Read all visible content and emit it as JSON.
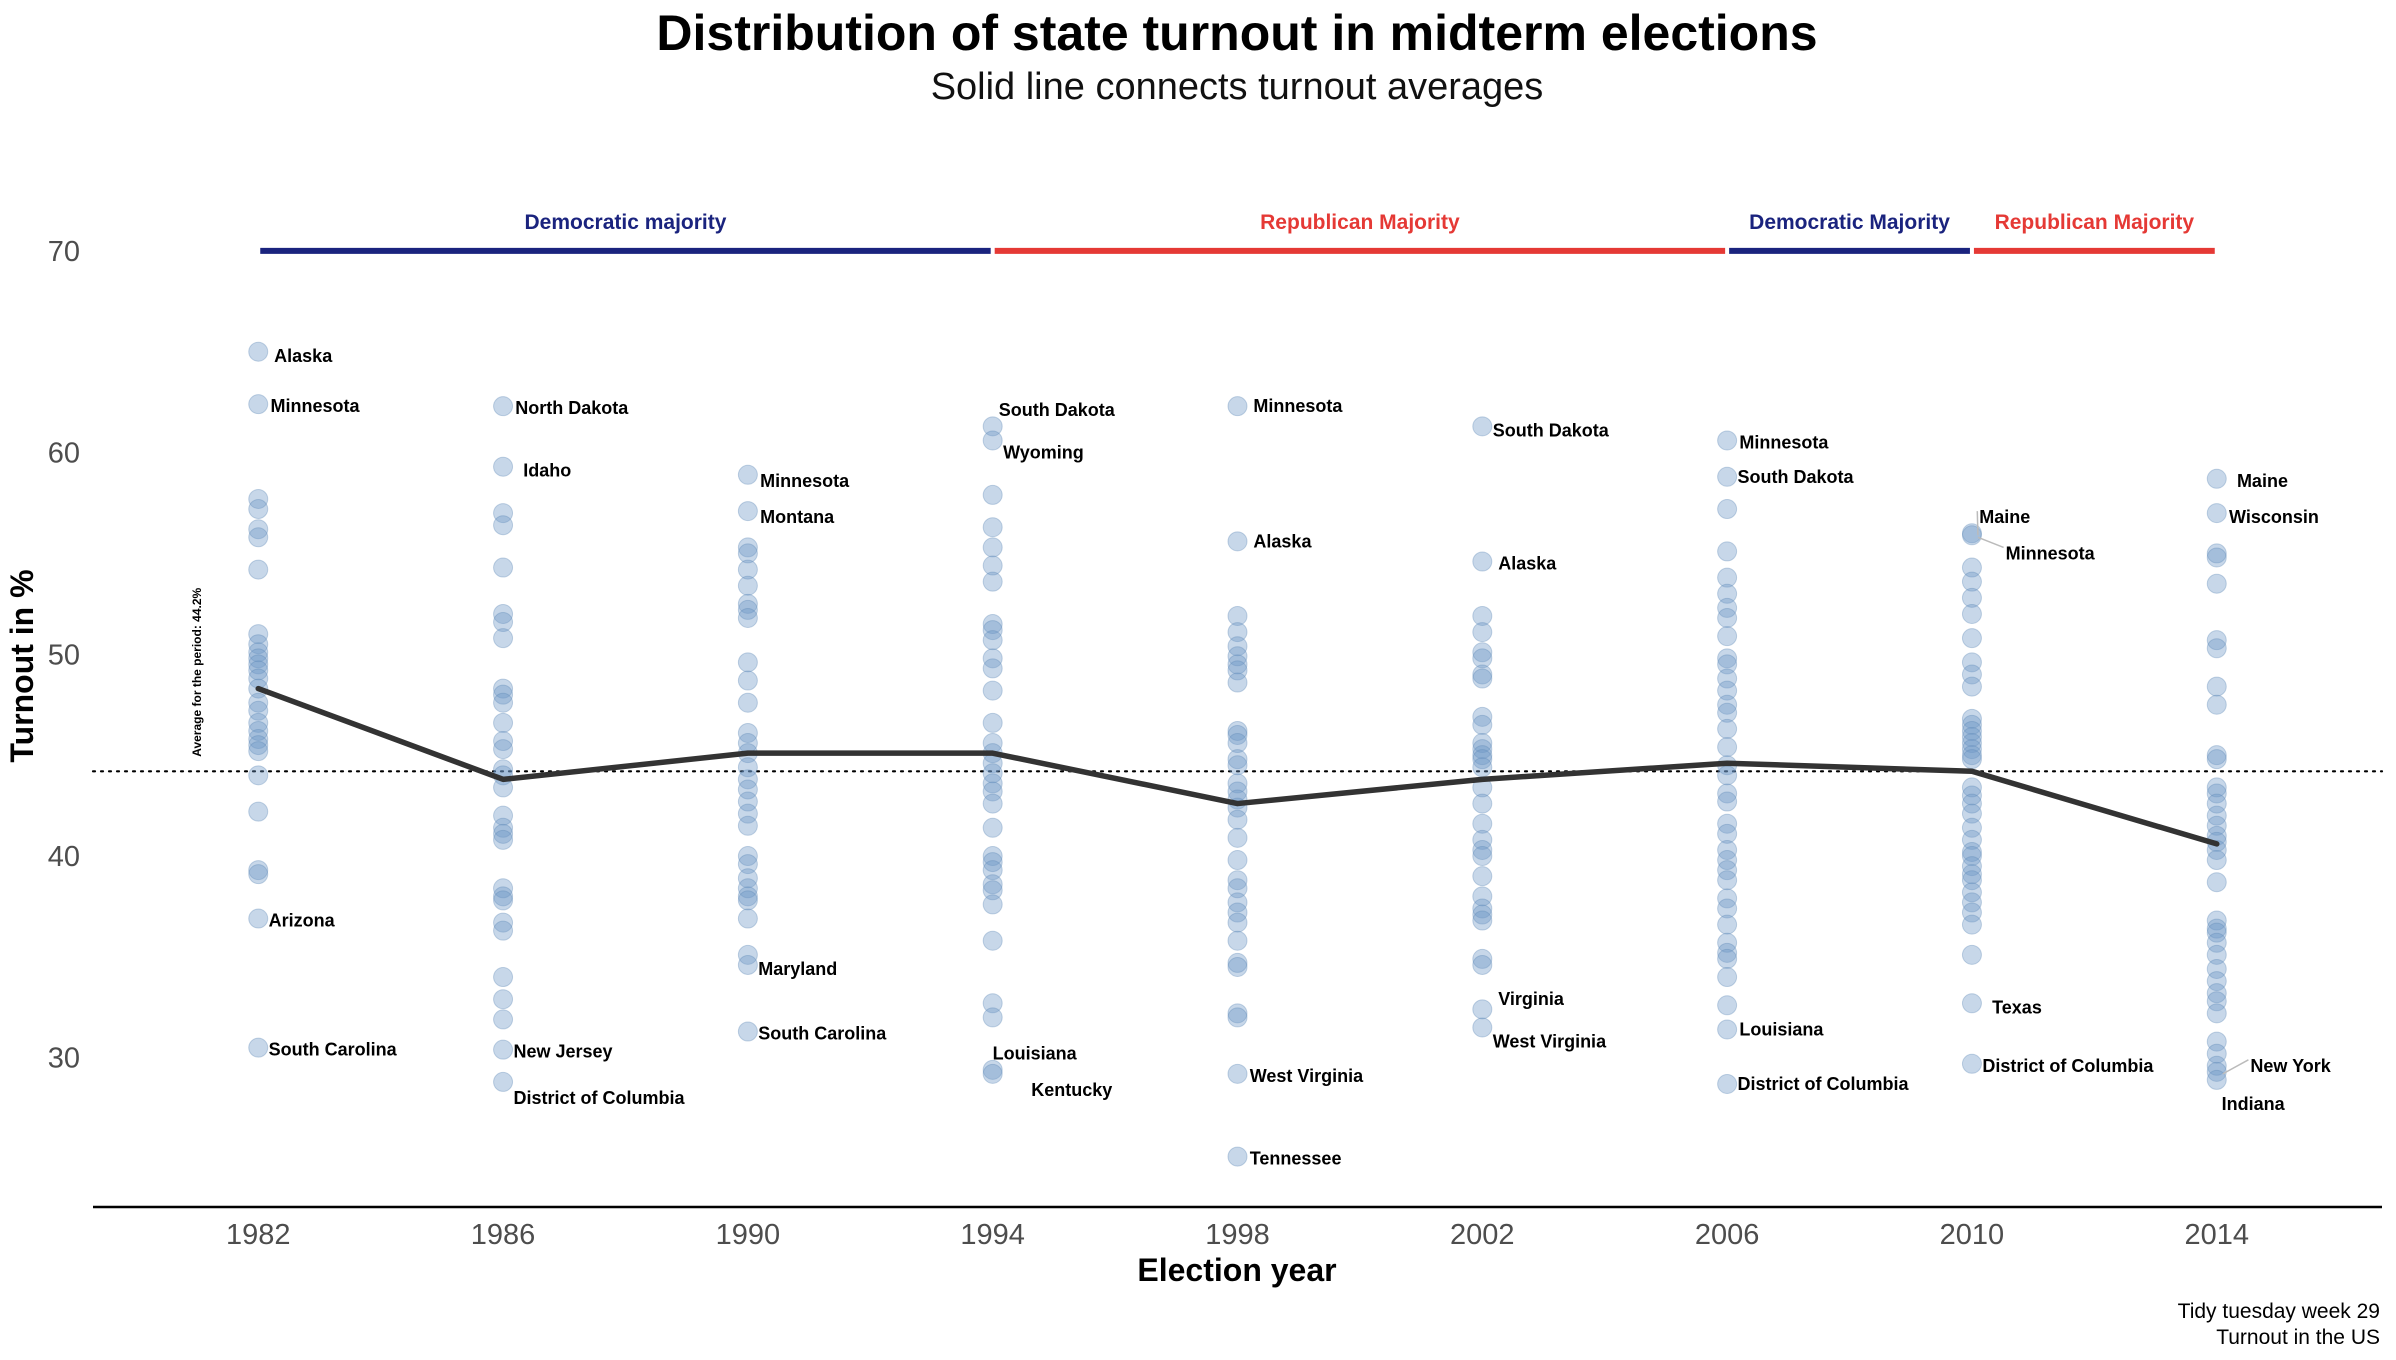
{
  "chart_data": {
    "type": "scatter",
    "title": "Distribution of state turnout in midterm elections",
    "subtitle": "Solid line connects turnout averages",
    "xlabel": "Election year",
    "ylabel": "Turnout in %",
    "x_ticks": [
      1982,
      1986,
      1990,
      1994,
      1998,
      2002,
      2006,
      2010,
      2014
    ],
    "y_ticks": [
      30,
      40,
      50,
      60,
      70
    ],
    "xlim": [
      1979.3,
      2016.7
    ],
    "ylim": [
      22.6,
      75.0
    ],
    "overall_average": {
      "value": 44.2,
      "label": "Average for the period: 44.2%"
    },
    "average_line": {
      "x": [
        1982,
        1986,
        1990,
        1994,
        1998,
        2002,
        2006,
        2010,
        2014
      ],
      "y": [
        48.3,
        43.8,
        45.1,
        45.1,
        42.6,
        43.8,
        44.6,
        44.2,
        40.6
      ]
    },
    "periods": [
      {
        "label": "Democratic majority",
        "start": 1982,
        "end": 1994,
        "color": "#1a237e"
      },
      {
        "label": "Republican Majority",
        "start": 1994,
        "end": 2006,
        "color": "#e53935"
      },
      {
        "label": "Democratic Majority",
        "start": 2006,
        "end": 2010,
        "color": "#1a237e"
      },
      {
        "label": "Republican Majority",
        "start": 2010,
        "end": 2014,
        "color": "#e53935"
      }
    ],
    "points": {
      "1982": [
        65.0,
        62.4,
        57.7,
        57.2,
        56.2,
        55.8,
        54.2,
        51.0,
        50.5,
        50.1,
        49.8,
        49.5,
        49.2,
        48.8,
        48.3,
        47.6,
        47.2,
        46.6,
        46.2,
        45.8,
        45.5,
        45.2,
        44.0,
        42.2,
        39.3,
        39.1,
        36.9,
        30.5
      ],
      "1986": [
        62.3,
        59.3,
        57.0,
        56.4,
        54.3,
        52.0,
        51.6,
        50.8,
        48.3,
        48.0,
        47.6,
        46.6,
        45.7,
        45.3,
        44.3,
        44.0,
        43.4,
        42.0,
        41.4,
        41.1,
        40.8,
        38.4,
        38.0,
        37.8,
        36.7,
        36.3,
        34.0,
        32.9,
        31.9,
        30.4,
        28.8
      ],
      "1990": [
        58.9,
        57.1,
        55.3,
        55.0,
        54.2,
        53.4,
        52.5,
        52.2,
        51.8,
        49.6,
        48.7,
        47.6,
        46.1,
        45.6,
        45.1,
        44.4,
        43.8,
        43.3,
        42.7,
        42.1,
        41.5,
        40.0,
        39.6,
        38.9,
        38.4,
        38.0,
        37.8,
        36.9,
        35.1,
        34.6,
        31.3
      ],
      "1994": [
        61.3,
        60.6,
        57.9,
        56.3,
        55.3,
        54.4,
        53.6,
        51.5,
        51.2,
        50.7,
        49.8,
        49.3,
        48.2,
        46.6,
        45.6,
        45.1,
        44.6,
        44.1,
        43.6,
        43.2,
        42.6,
        41.4,
        40.0,
        39.7,
        39.3,
        38.6,
        38.3,
        37.6,
        35.8,
        32.7,
        32.0,
        29.4,
        29.2
      ],
      "1998": [
        62.3,
        55.6,
        51.9,
        51.1,
        50.4,
        49.9,
        49.5,
        49.2,
        48.6,
        46.2,
        46.0,
        45.6,
        44.8,
        44.5,
        43.6,
        43.2,
        42.8,
        42.4,
        41.8,
        40.9,
        39.8,
        38.8,
        38.4,
        37.7,
        37.2,
        36.7,
        35.8,
        34.7,
        34.5,
        32.2,
        32.0,
        29.2,
        25.1
      ],
      "2002": [
        61.3,
        54.6,
        51.9,
        51.1,
        50.1,
        49.8,
        49.0,
        48.8,
        46.9,
        46.5,
        45.6,
        45.3,
        45.0,
        44.8,
        44.4,
        43.4,
        42.6,
        41.6,
        40.8,
        40.3,
        40.0,
        39.0,
        38.0,
        37.4,
        37.1,
        36.8,
        34.9,
        34.6,
        32.4,
        31.5
      ],
      "2006": [
        60.6,
        58.8,
        57.2,
        55.1,
        53.8,
        53.0,
        52.3,
        51.8,
        50.9,
        49.8,
        49.5,
        48.8,
        48.2,
        47.5,
        47.1,
        46.3,
        45.4,
        44.5,
        44.0,
        43.1,
        42.7,
        41.6,
        41.1,
        40.3,
        39.8,
        39.3,
        38.8,
        37.9,
        37.4,
        36.6,
        35.7,
        35.2,
        34.9,
        34.0,
        32.6,
        31.4,
        28.7
      ],
      "2010": [
        56.0,
        55.9,
        54.3,
        53.6,
        52.8,
        52.0,
        50.8,
        49.6,
        49.0,
        48.4,
        46.8,
        46.5,
        46.2,
        45.9,
        45.6,
        45.3,
        45.0,
        44.8,
        43.4,
        43.0,
        42.6,
        42.1,
        41.4,
        40.8,
        40.2,
        40.0,
        39.5,
        39.1,
        38.8,
        38.2,
        37.7,
        37.2,
        36.6,
        35.1,
        32.7,
        29.7
      ],
      "2014": [
        58.7,
        57.0,
        55.0,
        54.8,
        53.5,
        50.7,
        50.3,
        48.4,
        47.5,
        45.0,
        44.8,
        43.4,
        43.1,
        42.6,
        42.0,
        41.5,
        41.0,
        40.7,
        40.3,
        39.8,
        38.7,
        36.8,
        36.4,
        36.2,
        35.7,
        35.1,
        34.4,
        33.8,
        33.2,
        32.8,
        32.2,
        30.8,
        30.2,
        29.6,
        29.3,
        28.9
      ]
    },
    "labels": [
      {
        "text": "Alaska",
        "x": 1982,
        "y": 65.0,
        "lx": 1982.26,
        "ly": 64.8
      },
      {
        "text": "Minnesota",
        "x": 1982,
        "y": 62.4,
        "lx": 1982.2,
        "ly": 62.3
      },
      {
        "text": "Arizona",
        "x": 1982,
        "y": 36.9,
        "lx": 1982.17,
        "ly": 36.8
      },
      {
        "text": "South Carolina",
        "x": 1982,
        "y": 30.5,
        "lx": 1982.17,
        "ly": 30.4
      },
      {
        "text": "North Dakota",
        "x": 1986,
        "y": 62.3,
        "lx": 1986.2,
        "ly": 62.2
      },
      {
        "text": "Idaho",
        "x": 1986,
        "y": 59.3,
        "lx": 1986.33,
        "ly": 59.1
      },
      {
        "text": "New Jersey",
        "x": 1986,
        "y": 30.4,
        "lx": 1986.17,
        "ly": 30.3
      },
      {
        "text": "District of Columbia",
        "x": 1986,
        "y": 28.8,
        "lx": 1986.17,
        "ly": 28.0
      },
      {
        "text": "Minnesota",
        "x": 1990,
        "y": 58.9,
        "lx": 1990.2,
        "ly": 58.6
      },
      {
        "text": "Montana",
        "x": 1990,
        "y": 57.1,
        "lx": 1990.2,
        "ly": 56.8
      },
      {
        "text": "Maryland",
        "x": 1990,
        "y": 34.6,
        "lx": 1990.17,
        "ly": 34.4
      },
      {
        "text": "South Carolina",
        "x": 1990,
        "y": 31.3,
        "lx": 1990.17,
        "ly": 31.2
      },
      {
        "text": "South Dakota",
        "x": 1994,
        "y": 61.3,
        "lx": 1994.1,
        "ly": 62.1
      },
      {
        "text": "Wyoming",
        "x": 1994,
        "y": 60.6,
        "lx": 1994.17,
        "ly": 60.0
      },
      {
        "text": "Louisiana",
        "x": 1994,
        "y": 29.4,
        "lx": 1994.0,
        "ly": 30.2
      },
      {
        "text": "Kentucky",
        "x": 1994,
        "y": 29.2,
        "lx": 1994.63,
        "ly": 28.4
      },
      {
        "text": "Minnesota",
        "x": 1998,
        "y": 62.3,
        "lx": 1998.26,
        "ly": 62.3
      },
      {
        "text": "Alaska",
        "x": 1998,
        "y": 55.6,
        "lx": 1998.26,
        "ly": 55.6
      },
      {
        "text": "West Virginia",
        "x": 1998,
        "y": 29.2,
        "lx": 1998.2,
        "ly": 29.1
      },
      {
        "text": "Tennessee",
        "x": 1998,
        "y": 25.1,
        "lx": 1998.2,
        "ly": 25.0
      },
      {
        "text": "South Dakota",
        "x": 2002,
        "y": 61.3,
        "lx": 2002.17,
        "ly": 61.1
      },
      {
        "text": "Alaska",
        "x": 2002,
        "y": 54.6,
        "lx": 2002.26,
        "ly": 54.5
      },
      {
        "text": "Virginia",
        "x": 2002,
        "y": 32.4,
        "lx": 2002.26,
        "ly": 32.9
      },
      {
        "text": "West Virginia",
        "x": 2002,
        "y": 31.5,
        "lx": 2002.17,
        "ly": 30.8
      },
      {
        "text": "Minnesota",
        "x": 2006,
        "y": 60.6,
        "lx": 2006.2,
        "ly": 60.5
      },
      {
        "text": "South Dakota",
        "x": 2006,
        "y": 58.8,
        "lx": 2006.17,
        "ly": 58.8
      },
      {
        "text": "Louisiana",
        "x": 2006,
        "y": 31.4,
        "lx": 2006.2,
        "ly": 31.4
      },
      {
        "text": "District of Columbia",
        "x": 2006,
        "y": 28.7,
        "lx": 2006.17,
        "ly": 28.7
      },
      {
        "text": "Maine",
        "x": 2010,
        "y": 56.0,
        "lx": 2010.12,
        "ly": 56.8,
        "leader": true
      },
      {
        "text": "Minnesota",
        "x": 2010,
        "y": 55.9,
        "lx": 2010.55,
        "ly": 55.0,
        "leader": true
      },
      {
        "text": "Texas",
        "x": 2010,
        "y": 32.7,
        "lx": 2010.33,
        "ly": 32.5
      },
      {
        "text": "District of Columbia",
        "x": 2010,
        "y": 29.7,
        "lx": 2010.17,
        "ly": 29.6
      },
      {
        "text": "Maine",
        "x": 2014,
        "y": 58.7,
        "lx": 2014.33,
        "ly": 58.6
      },
      {
        "text": "Wisconsin",
        "x": 2014,
        "y": 57.0,
        "lx": 2014.2,
        "ly": 56.8
      },
      {
        "text": "New York",
        "x": 2014,
        "y": 29.3,
        "lx": 2014.55,
        "ly": 29.6,
        "leader": true
      },
      {
        "text": "Indiana",
        "x": 2014,
        "y": 28.9,
        "lx": 2014.08,
        "ly": 27.7
      }
    ]
  },
  "caption_lines": [
    "Tidy tuesday week 29",
    "Turnout in the US"
  ],
  "colors": {
    "democratic": "#1a237e",
    "republican": "#e53935",
    "points": "#6b97c4",
    "average_line": "#333333"
  }
}
